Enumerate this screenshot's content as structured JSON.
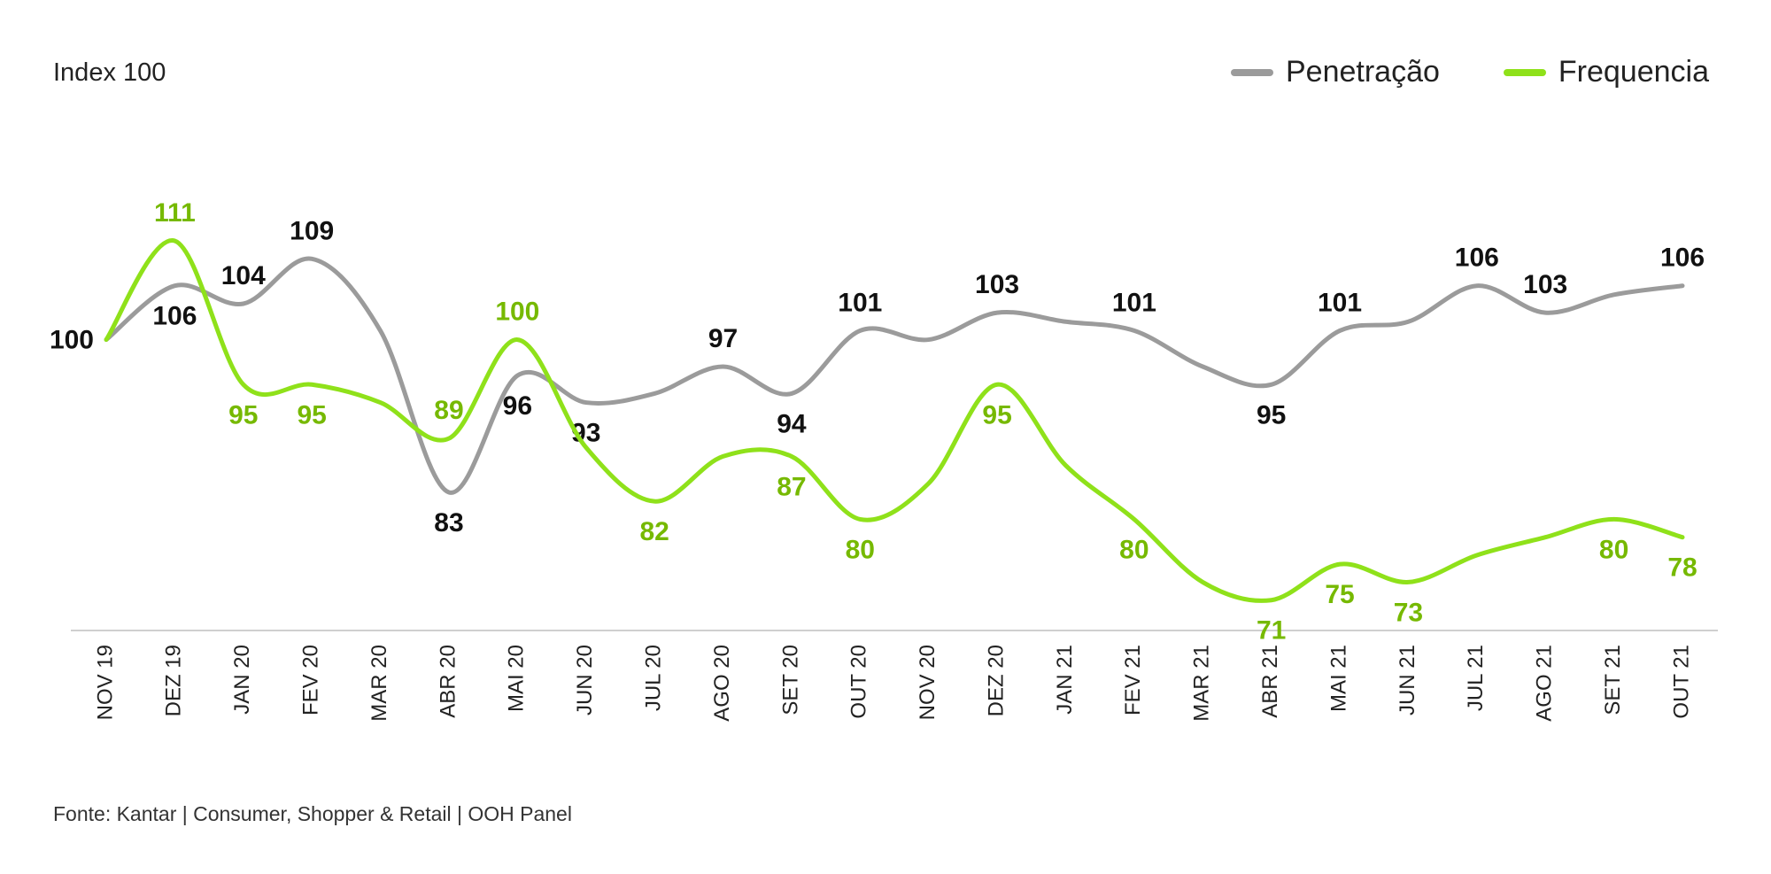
{
  "chart_data": {
    "type": "line",
    "ylabel": "Index 100",
    "categories": [
      "NOV 19",
      "DEZ 19",
      "JAN 20",
      "FEV 20",
      "MAR 20",
      "ABR 20",
      "MAI 20",
      "JUN 20",
      "JUL 20",
      "AGO 20",
      "SET 20",
      "OUT 20",
      "NOV 20",
      "DEZ 20",
      "JAN 21",
      "FEV 21",
      "MAR 21",
      "ABR 21",
      "MAI 21",
      "JUN 21",
      "JUL 21",
      "AGO 21",
      "SET 21",
      "OUT 21"
    ],
    "series": [
      {
        "name": "Penetração",
        "color": "#9b9b9b",
        "label_color": "#111111",
        "values": [
          100,
          106,
          104,
          109,
          101,
          83,
          96,
          93,
          94,
          97,
          94,
          101,
          100,
          103,
          102,
          101,
          97,
          95,
          101,
          102,
          106,
          103,
          105,
          106
        ],
        "labels": [
          "100",
          "106",
          "104",
          "109",
          "",
          "83",
          "96",
          "93",
          "",
          "97",
          "94",
          "101",
          "",
          "103",
          "",
          "101",
          "",
          "95",
          "101",
          "",
          "106",
          "103",
          "",
          "106"
        ],
        "label_pos": [
          "left",
          "below",
          "above",
          "above",
          "",
          "below",
          "below",
          "below",
          "",
          "above",
          "below",
          "above",
          "",
          "above",
          "",
          "above",
          "",
          "below",
          "above",
          "",
          "above",
          "above",
          "",
          "above"
        ]
      },
      {
        "name": "Frequencia",
        "color": "#8fe11a",
        "label_color": "#76b900",
        "values": [
          100,
          111,
          95,
          95,
          93,
          89,
          100,
          88,
          82,
          87,
          87,
          80,
          84,
          95,
          86,
          80,
          73,
          71,
          75,
          73,
          76,
          78,
          80,
          78
        ],
        "labels": [
          "",
          "111",
          "95",
          "95",
          "",
          "89",
          "100",
          "",
          "82",
          "",
          "87",
          "80",
          "",
          "95",
          "",
          "80",
          "",
          "71",
          "75",
          "73",
          "",
          "",
          "80",
          "78"
        ],
        "label_pos": [
          "",
          "above",
          "below",
          "below",
          "",
          "above",
          "above",
          "",
          "below",
          "",
          "below",
          "below",
          "",
          "below",
          "",
          "below",
          "",
          "below",
          "below",
          "below",
          "",
          "",
          "below",
          "below"
        ]
      }
    ],
    "ylim": [
      55,
      125
    ],
    "grid": false,
    "legend": "top-right",
    "source": "Fonte: Kantar | Consumer, Shopper & Retail | OOH Panel"
  }
}
